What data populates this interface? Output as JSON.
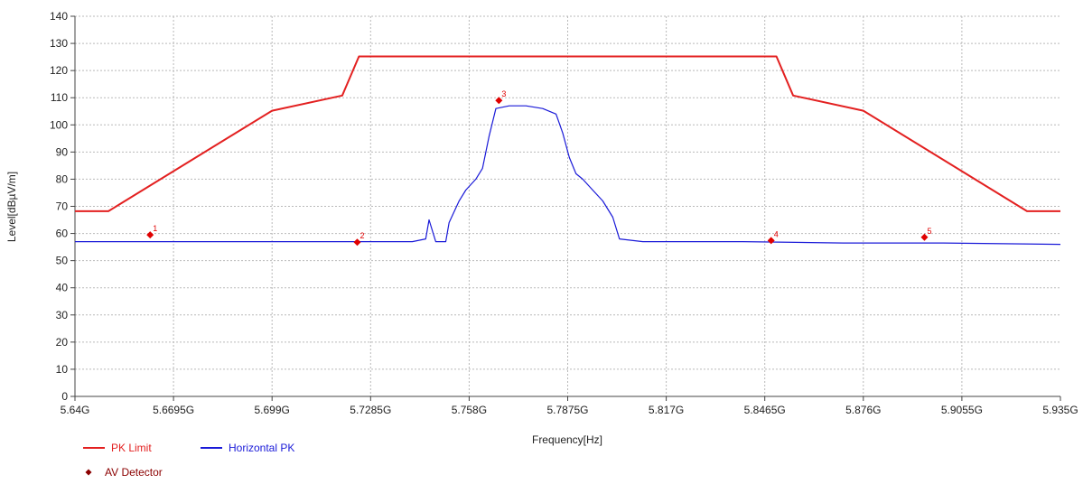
{
  "chart_data": {
    "type": "line",
    "xlabel": "Frequency[Hz]",
    "ylabel": "Level[dBµV/m]",
    "xlim": [
      5.64,
      5.935
    ],
    "ylim": [
      0,
      140
    ],
    "x_unit": "GHz",
    "grid": true,
    "x_ticks": [
      5.64,
      5.6695,
      5.699,
      5.7285,
      5.758,
      5.7875,
      5.817,
      5.8465,
      5.876,
      5.9055,
      5.935
    ],
    "x_tick_labels": [
      "5.64G",
      "5.6695G",
      "5.699G",
      "5.7285G",
      "5.758G",
      "5.7875G",
      "5.817G",
      "5.8465G",
      "5.876G",
      "5.9055G",
      "5.935G"
    ],
    "y_ticks": [
      0,
      10,
      20,
      30,
      40,
      50,
      60,
      70,
      80,
      90,
      100,
      110,
      120,
      130,
      140
    ],
    "y_tick_labels": [
      "0",
      "10",
      "20",
      "30",
      "40",
      "50",
      "60",
      "70",
      "80",
      "90",
      "100",
      "110",
      "120",
      "130",
      "140"
    ],
    "series": [
      {
        "name": "PK Limit",
        "color": "#e32020",
        "x": [
          5.64,
          5.65,
          5.699,
          5.72,
          5.725,
          5.85,
          5.855,
          5.876,
          5.925,
          5.935
        ],
        "y": [
          68.2,
          68.2,
          105.2,
          110.8,
          125.2,
          125.2,
          110.8,
          105.2,
          68.2,
          68.2
        ]
      },
      {
        "name": "Horizontal PK",
        "color": "#1a1ad8",
        "x": [
          5.64,
          5.66,
          5.68,
          5.7,
          5.72,
          5.741,
          5.745,
          5.746,
          5.748,
          5.751,
          5.752,
          5.755,
          5.757,
          5.76,
          5.762,
          5.764,
          5.766,
          5.77,
          5.775,
          5.78,
          5.784,
          5.786,
          5.788,
          5.79,
          5.792,
          5.795,
          5.798,
          5.801,
          5.803,
          5.81,
          5.84,
          5.87,
          5.9,
          5.935
        ],
        "y": [
          57,
          57,
          57,
          57,
          57,
          57,
          58,
          65,
          57,
          57,
          64,
          72,
          76,
          80,
          84,
          96,
          106,
          107,
          107,
          106,
          104,
          97,
          88,
          82,
          80,
          76,
          72,
          66,
          58,
          57,
          57,
          56.5,
          56.5,
          56
        ]
      }
    ],
    "markers": {
      "name": "AV Detector",
      "color": "#8b0000",
      "points": [
        {
          "label": "1",
          "x": 5.6625,
          "y": 59.5
        },
        {
          "label": "2",
          "x": 5.7245,
          "y": 56.8
        },
        {
          "label": "3",
          "x": 5.7669,
          "y": 109
        },
        {
          "label": "4",
          "x": 5.8484,
          "y": 57.4
        },
        {
          "label": "5",
          "x": 5.8943,
          "y": 58.6
        }
      ]
    },
    "legend": [
      {
        "label": "PK Limit",
        "kind": "line",
        "color": "#e32020"
      },
      {
        "label": "Horizontal PK",
        "kind": "line",
        "color": "#1a1ad8"
      },
      {
        "label": "AV Detector",
        "kind": "diamond",
        "color": "#8b0000"
      }
    ],
    "legend_placement": "bottom-left"
  }
}
